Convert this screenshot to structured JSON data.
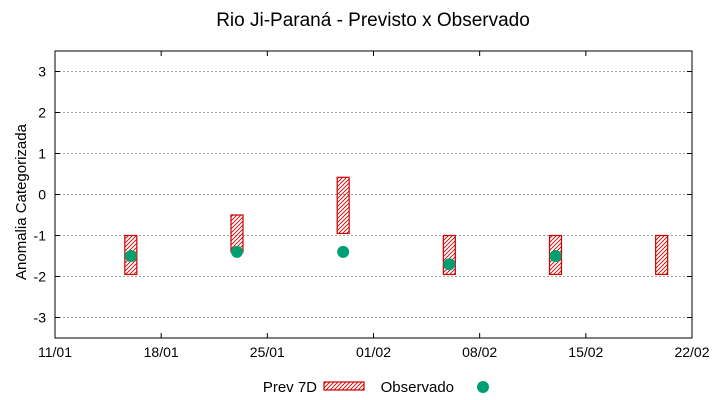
{
  "chart_data": {
    "type": "floating-bar-scatter",
    "title": "Rio Ji-Paraná - Previsto x Observado",
    "xlabel": "",
    "ylabel": "Anomalia Categorizada",
    "x_tick_labels": [
      "11/01",
      "18/01",
      "25/01",
      "01/02",
      "08/02",
      "15/02",
      "22/02"
    ],
    "x_tick_days": [
      0,
      7,
      14,
      21,
      28,
      35,
      42
    ],
    "y_tick_labels": [
      "3",
      "2",
      "1",
      "0",
      "-1",
      "-2",
      "-3"
    ],
    "y_tick_values": [
      3,
      2,
      1,
      0,
      -1,
      -2,
      -3
    ],
    "xlim_days": [
      0,
      42
    ],
    "ylim": [
      -3.5,
      3.5
    ],
    "grid": true,
    "legend_position": "bottom",
    "series": [
      {
        "name": "Prev 7D",
        "kind": "range-bar",
        "color": "#cc0000",
        "points": [
          {
            "x": "16/01",
            "day": 5,
            "low": -1.95,
            "high": -1.0
          },
          {
            "x": "23/01",
            "day": 12,
            "low": -1.4,
            "high": -0.5
          },
          {
            "x": "30/01",
            "day": 19,
            "low": -0.95,
            "high": 0.42
          },
          {
            "x": "06/02",
            "day": 26,
            "low": -1.95,
            "high": -1.0
          },
          {
            "x": "13/02",
            "day": 33,
            "low": -1.95,
            "high": -1.0
          },
          {
            "x": "20/02",
            "day": 40,
            "low": -1.95,
            "high": -1.0
          }
        ]
      },
      {
        "name": "Observado",
        "kind": "scatter",
        "color": "#009e73",
        "points": [
          {
            "x": "16/01",
            "day": 5,
            "y": -1.5
          },
          {
            "x": "23/01",
            "day": 12,
            "y": -1.4
          },
          {
            "x": "30/01",
            "day": 19,
            "y": -1.4
          },
          {
            "x": "06/02",
            "day": 26,
            "y": -1.7
          },
          {
            "x": "13/02",
            "day": 33,
            "y": -1.5
          }
        ]
      }
    ]
  }
}
